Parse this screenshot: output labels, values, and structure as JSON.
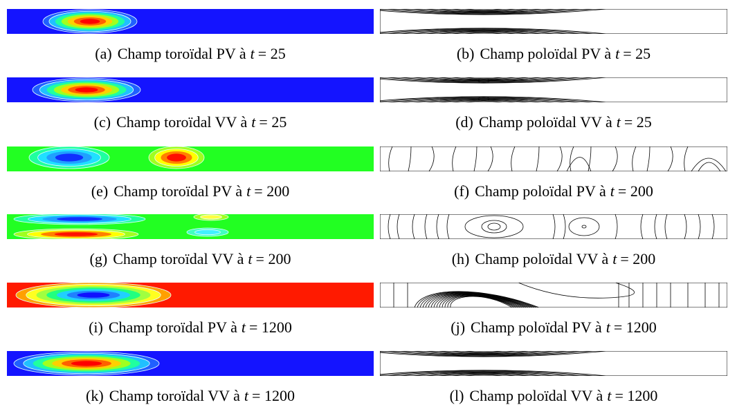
{
  "panels": [
    {
      "label": "(a)",
      "text": "Champ toroïdal PV à",
      "variable": "t",
      "equals": "= 25"
    },
    {
      "label": "(b)",
      "text": "Champ poloïdal PV à",
      "variable": "t",
      "equals": "= 25"
    },
    {
      "label": "(c)",
      "text": "Champ toroïdal VV à",
      "variable": "t",
      "equals": "= 25"
    },
    {
      "label": "(d)",
      "text": "Champ poloïdal VV à",
      "variable": "t",
      "equals": "= 25"
    },
    {
      "label": "(e)",
      "text": "Champ toroïdal PV à",
      "variable": "t",
      "equals": "= 200"
    },
    {
      "label": "(f)",
      "text": "Champ poloïdal PV à",
      "variable": "t",
      "equals": "= 200"
    },
    {
      "label": "(g)",
      "text": "Champ toroïdal VV à",
      "variable": "t",
      "equals": "= 200"
    },
    {
      "label": "(h)",
      "text": "Champ poloïdal VV à",
      "variable": "t",
      "equals": "= 200"
    },
    {
      "label": "(i)",
      "text": "Champ toroïdal PV à",
      "variable": "t",
      "equals": "= 1200"
    },
    {
      "label": "(j)",
      "text": "Champ poloïdal PV à",
      "variable": "t",
      "equals": "= 1200"
    },
    {
      "label": "(k)",
      "text": "Champ toroïdal VV à",
      "variable": "t",
      "equals": "= 1200"
    },
    {
      "label": "(l)",
      "text": "Champ poloïdal VV à",
      "variable": "t",
      "equals": "= 1200"
    }
  ]
}
